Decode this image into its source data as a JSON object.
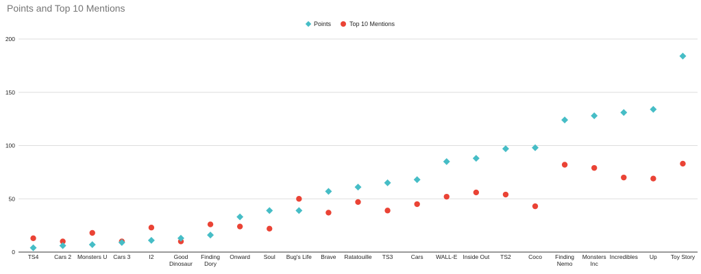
{
  "chart_data": {
    "type": "scatter",
    "title": "Points and Top 10 Mentions",
    "xlabel": "",
    "ylabel": "",
    "ylim": [
      0,
      200
    ],
    "yticks": [
      "0",
      "50",
      "100",
      "150",
      "200"
    ],
    "grid": true,
    "legend_position": "top",
    "categories": [
      "TS4",
      "Cars 2",
      "Monsters U",
      "Cars 3",
      "I2",
      "Good Dinosaur",
      "Finding Dory",
      "Onward",
      "Soul",
      "Bug's Life",
      "Brave",
      "Ratatouille",
      "TS3",
      "Cars",
      "WALL-E",
      "Inside Out",
      "TS2",
      "Coco",
      "Finding Nemo",
      "Monsters Inc",
      "Incredibles",
      "Up",
      "Toy Story"
    ],
    "series": [
      {
        "name": "Points",
        "color": "#46bdc6",
        "marker": "diamond",
        "values": [
          4,
          6,
          7,
          9,
          11,
          13,
          16,
          33,
          39,
          39,
          57,
          61,
          65,
          68,
          85,
          88,
          97,
          98,
          124,
          128,
          131,
          134,
          184
        ]
      },
      {
        "name": "Top 10 Mentions",
        "color": "#ea4335",
        "marker": "circle",
        "values": [
          13,
          10,
          18,
          10,
          23,
          10,
          26,
          24,
          22,
          50,
          37,
          47,
          39,
          45,
          52,
          56,
          54,
          43,
          82,
          79,
          70,
          69,
          83
        ]
      }
    ]
  }
}
